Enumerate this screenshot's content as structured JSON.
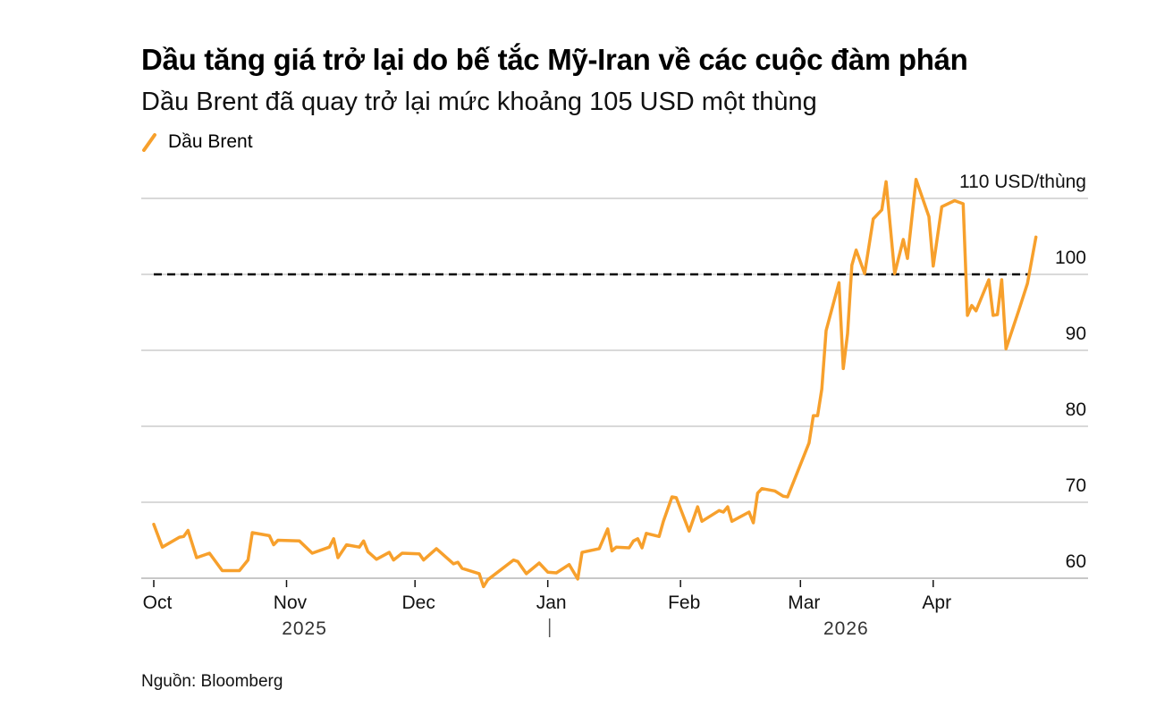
{
  "title": "Dầu tăng giá trở lại do bế tắc Mỹ-Iran về các cuộc đàm phán",
  "subtitle": "Dầu Brent đã quay trở lại mức khoảng 105 USD một thùng",
  "source": "Nguồn: Bloomberg",
  "chart_data": {
    "type": "line",
    "title": "Dầu tăng giá trở lại do bế tắc Mỹ-Iran về các cuộc đàm phán",
    "subtitle": "Dầu Brent đã quay trở lại mức khoảng 105 USD một thùng",
    "legend": {
      "position": "top-left",
      "entries": [
        "Dầu Brent"
      ]
    },
    "x_ticks": [
      {
        "date": "2025-10-01",
        "label": "Oct"
      },
      {
        "date": "2025-11-01",
        "label": "Nov"
      },
      {
        "date": "2025-12-01",
        "label": "Dec"
      },
      {
        "date": "2026-01-01",
        "label": "Jan"
      },
      {
        "date": "2026-02-01",
        "label": "Feb"
      },
      {
        "date": "2026-03-01",
        "label": "Mar"
      },
      {
        "date": "2026-04-01",
        "label": "Apr"
      }
    ],
    "year_labels": [
      {
        "date": "2025-11-15",
        "label": "2025"
      },
      {
        "date": "2026-03-15",
        "label": "2026"
      }
    ],
    "y_ticks": [
      {
        "value": 60,
        "label": "60"
      },
      {
        "value": 70,
        "label": "70"
      },
      {
        "value": 80,
        "label": "80"
      },
      {
        "value": 90,
        "label": "90"
      },
      {
        "value": 100,
        "label": "100"
      },
      {
        "value": 110,
        "label": "110 USD/thùng"
      }
    ],
    "ylim": [
      60,
      110
    ],
    "grid": true,
    "reference_line": {
      "value": 100,
      "style": "dashed",
      "color": "#000000"
    },
    "series": [
      {
        "name": "Dầu Brent",
        "color": "#F7A02C",
        "points": [
          [
            "2025-10-01",
            67.1
          ],
          [
            "2025-10-03",
            64.1
          ],
          [
            "2025-10-07",
            65.4
          ],
          [
            "2025-10-08",
            65.5
          ],
          [
            "2025-10-09",
            66.3
          ],
          [
            "2025-10-11",
            62.7
          ],
          [
            "2025-10-14",
            63.3
          ],
          [
            "2025-10-17",
            61.0
          ],
          [
            "2025-10-21",
            61.0
          ],
          [
            "2025-10-23",
            62.4
          ],
          [
            "2025-10-24",
            66.0
          ],
          [
            "2025-10-28",
            65.6
          ],
          [
            "2025-10-29",
            64.4
          ],
          [
            "2025-10-30",
            65.0
          ],
          [
            "2025-11-04",
            64.9
          ],
          [
            "2025-11-07",
            63.3
          ],
          [
            "2025-11-11",
            64.1
          ],
          [
            "2025-11-12",
            65.2
          ],
          [
            "2025-11-13",
            62.7
          ],
          [
            "2025-11-15",
            64.4
          ],
          [
            "2025-11-18",
            64.1
          ],
          [
            "2025-11-19",
            64.9
          ],
          [
            "2025-11-20",
            63.5
          ],
          [
            "2025-11-22",
            62.5
          ],
          [
            "2025-11-25",
            63.4
          ],
          [
            "2025-11-26",
            62.4
          ],
          [
            "2025-11-28",
            63.3
          ],
          [
            "2025-12-02",
            63.2
          ],
          [
            "2025-12-03",
            62.4
          ],
          [
            "2025-12-06",
            63.9
          ],
          [
            "2025-12-10",
            61.9
          ],
          [
            "2025-12-11",
            62.1
          ],
          [
            "2025-12-12",
            61.3
          ],
          [
            "2025-12-16",
            60.6
          ],
          [
            "2025-12-17",
            58.9
          ],
          [
            "2025-12-18",
            59.8
          ],
          [
            "2025-12-24",
            62.4
          ],
          [
            "2025-12-25",
            62.2
          ],
          [
            "2025-12-27",
            60.6
          ],
          [
            "2025-12-30",
            62.0
          ],
          [
            "2026-01-01",
            60.8
          ],
          [
            "2026-01-03",
            60.7
          ],
          [
            "2026-01-06",
            61.8
          ],
          [
            "2026-01-08",
            59.9
          ],
          [
            "2026-01-09",
            63.4
          ],
          [
            "2026-01-13",
            63.9
          ],
          [
            "2026-01-15",
            66.5
          ],
          [
            "2026-01-16",
            63.6
          ],
          [
            "2026-01-17",
            64.1
          ],
          [
            "2026-01-20",
            64.0
          ],
          [
            "2026-01-21",
            64.9
          ],
          [
            "2026-01-22",
            65.2
          ],
          [
            "2026-01-23",
            64.0
          ],
          [
            "2026-01-24",
            65.9
          ],
          [
            "2026-01-27",
            65.5
          ],
          [
            "2026-01-28",
            67.5
          ],
          [
            "2026-01-30",
            70.7
          ],
          [
            "2026-01-31",
            70.6
          ],
          [
            "2026-02-03",
            66.2
          ],
          [
            "2026-02-05",
            69.4
          ],
          [
            "2026-02-06",
            67.5
          ],
          [
            "2026-02-10",
            68.9
          ],
          [
            "2026-02-11",
            68.7
          ],
          [
            "2026-02-12",
            69.4
          ],
          [
            "2026-02-13",
            67.5
          ],
          [
            "2026-02-17",
            68.7
          ],
          [
            "2026-02-18",
            67.3
          ],
          [
            "2026-02-19",
            71.2
          ],
          [
            "2026-02-20",
            71.8
          ],
          [
            "2026-02-23",
            71.5
          ],
          [
            "2026-02-25",
            70.8
          ],
          [
            "2026-02-26",
            70.7
          ],
          [
            "2026-03-03",
            77.8
          ],
          [
            "2026-03-04",
            81.4
          ],
          [
            "2026-03-05",
            81.4
          ],
          [
            "2026-03-06",
            84.9
          ],
          [
            "2026-03-07",
            92.6
          ],
          [
            "2026-03-10",
            98.9
          ],
          [
            "2026-03-11",
            87.6
          ],
          [
            "2026-03-12",
            92.2
          ],
          [
            "2026-03-13",
            101.2
          ],
          [
            "2026-03-14",
            103.2
          ],
          [
            "2026-03-16",
            100.1
          ],
          [
            "2026-03-18",
            107.3
          ],
          [
            "2026-03-20",
            108.5
          ],
          [
            "2026-03-21",
            112.2
          ],
          [
            "2026-03-23",
            100.1
          ],
          [
            "2026-03-25",
            104.6
          ],
          [
            "2026-03-26",
            102.1
          ],
          [
            "2026-03-28",
            112.5
          ],
          [
            "2026-03-31",
            107.6
          ],
          [
            "2026-04-01",
            101.1
          ],
          [
            "2026-04-03",
            108.9
          ],
          [
            "2026-04-06",
            109.7
          ],
          [
            "2026-04-08",
            109.3
          ],
          [
            "2026-04-09",
            94.6
          ],
          [
            "2026-04-10",
            95.9
          ],
          [
            "2026-04-11",
            95.2
          ],
          [
            "2026-04-14",
            99.3
          ],
          [
            "2026-04-15",
            94.6
          ],
          [
            "2026-04-16",
            94.7
          ],
          [
            "2026-04-17",
            99.3
          ],
          [
            "2026-04-18",
            90.2
          ],
          [
            "2026-04-21",
            95.3
          ],
          [
            "2026-04-23",
            98.8
          ],
          [
            "2026-04-25",
            104.9
          ]
        ]
      }
    ]
  }
}
